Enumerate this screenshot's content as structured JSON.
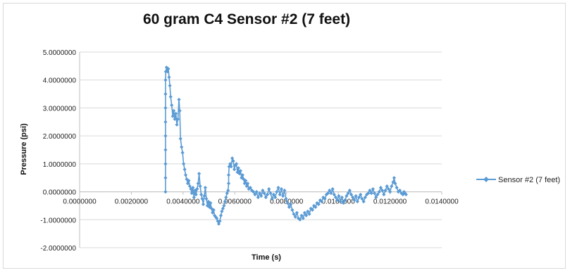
{
  "chart_data": {
    "type": "scatter",
    "title": "60 gram C4 Sensor #2 (7 feet)",
    "xlabel": "Time (s)",
    "ylabel": "Pressure (psi)",
    "xlim": [
      0,
      0.014
    ],
    "ylim": [
      -2,
      5
    ],
    "x_ticks": [
      "0.0000000",
      "0.0020000",
      "0.0040000",
      "0.0060000",
      "0.0080000",
      "0.0100000",
      "0.0120000",
      "0.0140000"
    ],
    "y_ticks": [
      "5.0000000",
      "4.0000000",
      "3.0000000",
      "2.0000000",
      "1.0000000",
      "0.0000000",
      "-1.0000000",
      "-2.0000000"
    ],
    "grid": "horizontal",
    "legend_position": "right",
    "series": [
      {
        "name": "Sensor #2 (7 feet)",
        "color": "#5b9bd5",
        "marker": "diamond",
        "points": [
          [
            0.00332,
            0.0
          ],
          [
            0.00332,
            0.5
          ],
          [
            0.00332,
            1.0
          ],
          [
            0.00332,
            1.5
          ],
          [
            0.00332,
            2.0
          ],
          [
            0.00332,
            2.5
          ],
          [
            0.00332,
            3.0
          ],
          [
            0.00332,
            3.5
          ],
          [
            0.00332,
            4.0
          ],
          [
            0.00333,
            4.3
          ],
          [
            0.00336,
            4.45
          ],
          [
            0.0034,
            4.3
          ],
          [
            0.00343,
            4.4
          ],
          [
            0.00346,
            4.1
          ],
          [
            0.00349,
            3.8
          ],
          [
            0.00352,
            3.4
          ],
          [
            0.00356,
            3.1
          ],
          [
            0.0036,
            2.7
          ],
          [
            0.00364,
            2.9
          ],
          [
            0.00368,
            2.6
          ],
          [
            0.00372,
            2.8
          ],
          [
            0.00376,
            2.4
          ],
          [
            0.0038,
            2.6
          ],
          [
            0.00384,
            3.3
          ],
          [
            0.00387,
            2.9
          ],
          [
            0.0039,
            1.9
          ],
          [
            0.00394,
            1.6
          ],
          [
            0.00398,
            1.4
          ],
          [
            0.00402,
            1.0
          ],
          [
            0.00406,
            0.8
          ],
          [
            0.0041,
            0.6
          ],
          [
            0.00414,
            0.45
          ],
          [
            0.00418,
            0.3
          ],
          [
            0.00422,
            0.4
          ],
          [
            0.00426,
            0.2
          ],
          [
            0.0043,
            0.1
          ],
          [
            0.00434,
            -0.05
          ],
          [
            0.00438,
            0.15
          ],
          [
            0.00442,
            -0.2
          ],
          [
            0.00446,
            0.05
          ],
          [
            0.0045,
            -0.1
          ],
          [
            0.00454,
            0.1
          ],
          [
            0.00458,
            0.3
          ],
          [
            0.00462,
            0.65
          ],
          [
            0.00466,
            0.2
          ],
          [
            0.0047,
            -0.1
          ],
          [
            0.00474,
            -0.25
          ],
          [
            0.00478,
            -0.45
          ],
          [
            0.00482,
            -0.15
          ],
          [
            0.00486,
            0.15
          ],
          [
            0.0049,
            -0.25
          ],
          [
            0.00494,
            -0.5
          ],
          [
            0.00498,
            -0.35
          ],
          [
            0.00502,
            -0.55
          ],
          [
            0.00506,
            -0.4
          ],
          [
            0.0051,
            -0.6
          ],
          [
            0.00514,
            -0.75
          ],
          [
            0.00518,
            -0.65
          ],
          [
            0.00522,
            -0.85
          ],
          [
            0.00526,
            -0.9
          ],
          [
            0.0053,
            -0.95
          ],
          [
            0.00534,
            -1.05
          ],
          [
            0.00538,
            -1.15
          ],
          [
            0.00542,
            -1.05
          ],
          [
            0.00546,
            -0.85
          ],
          [
            0.0055,
            -0.7
          ],
          [
            0.00554,
            -0.6
          ],
          [
            0.00558,
            -0.5
          ],
          [
            0.00562,
            -0.35
          ],
          [
            0.00566,
            -0.2
          ],
          [
            0.0057,
            -0.05
          ],
          [
            0.00574,
            0.05
          ],
          [
            0.00576,
            0.3
          ],
          [
            0.00576,
            0.6
          ],
          [
            0.00578,
            0.9
          ],
          [
            0.00582,
            1.0
          ],
          [
            0.00586,
            0.9
          ],
          [
            0.0059,
            1.2
          ],
          [
            0.00594,
            1.1
          ],
          [
            0.00598,
            0.8
          ],
          [
            0.00602,
            0.95
          ],
          [
            0.00606,
            1.0
          ],
          [
            0.0061,
            0.7
          ],
          [
            0.00614,
            0.85
          ],
          [
            0.00618,
            0.65
          ],
          [
            0.00622,
            0.75
          ],
          [
            0.00626,
            0.5
          ],
          [
            0.0063,
            0.6
          ],
          [
            0.00634,
            0.45
          ],
          [
            0.00638,
            0.3
          ],
          [
            0.00642,
            0.4
          ],
          [
            0.00646,
            0.2
          ],
          [
            0.0065,
            0.3
          ],
          [
            0.00654,
            0.1
          ],
          [
            0.0066,
            0.15
          ],
          [
            0.00666,
            0.05
          ],
          [
            0.00672,
            0.0
          ],
          [
            0.00678,
            -0.1
          ],
          [
            0.00684,
            0.0
          ],
          [
            0.0069,
            -0.2
          ],
          [
            0.00696,
            -0.05
          ],
          [
            0.00702,
            -0.15
          ],
          [
            0.00708,
            0.05
          ],
          [
            0.00714,
            -0.05
          ],
          [
            0.0072,
            -0.2
          ],
          [
            0.00726,
            -0.1
          ],
          [
            0.00732,
            0.1
          ],
          [
            0.00738,
            -0.05
          ],
          [
            0.00744,
            -0.25
          ],
          [
            0.0075,
            -0.1
          ],
          [
            0.00756,
            -0.2
          ],
          [
            0.00762,
            0.0
          ],
          [
            0.00768,
            0.15
          ],
          [
            0.00774,
            -0.1
          ],
          [
            0.0078,
            0.1
          ],
          [
            0.00786,
            -0.15
          ],
          [
            0.00792,
            0.05
          ],
          [
            0.00798,
            -0.25
          ],
          [
            0.00804,
            -0.4
          ],
          [
            0.0081,
            -0.55
          ],
          [
            0.00816,
            -0.45
          ],
          [
            0.00822,
            -0.65
          ],
          [
            0.00828,
            -0.8
          ],
          [
            0.00834,
            -0.9
          ],
          [
            0.0084,
            -0.75
          ],
          [
            0.00846,
            -0.95
          ],
          [
            0.00852,
            -1.0
          ],
          [
            0.00858,
            -0.85
          ],
          [
            0.00864,
            -0.95
          ],
          [
            0.0087,
            -0.75
          ],
          [
            0.00876,
            -0.85
          ],
          [
            0.00882,
            -0.7
          ],
          [
            0.00888,
            -0.8
          ],
          [
            0.00894,
            -0.6
          ],
          [
            0.009,
            -0.65
          ],
          [
            0.00906,
            -0.5
          ],
          [
            0.00912,
            -0.55
          ],
          [
            0.00918,
            -0.4
          ],
          [
            0.00924,
            -0.45
          ],
          [
            0.0093,
            -0.3
          ],
          [
            0.00936,
            -0.35
          ],
          [
            0.00942,
            -0.2
          ],
          [
            0.00948,
            -0.25
          ],
          [
            0.00954,
            -0.1
          ],
          [
            0.0096,
            -0.05
          ],
          [
            0.00966,
            0.05
          ],
          [
            0.00972,
            -0.05
          ],
          [
            0.00978,
            0.1
          ],
          [
            0.00984,
            -0.1
          ],
          [
            0.0099,
            -0.2
          ],
          [
            0.00996,
            -0.3
          ],
          [
            0.01002,
            -0.15
          ],
          [
            0.01008,
            -0.35
          ],
          [
            0.01014,
            -0.2
          ],
          [
            0.0102,
            -0.4
          ],
          [
            0.01026,
            -0.3
          ],
          [
            0.01032,
            -0.15
          ],
          [
            0.01038,
            -0.05
          ],
          [
            0.01044,
            0.05
          ],
          [
            0.0105,
            -0.1
          ],
          [
            0.01056,
            -0.2
          ],
          [
            0.01062,
            -0.3
          ],
          [
            0.01068,
            -0.15
          ],
          [
            0.01074,
            -0.35
          ],
          [
            0.0108,
            -0.2
          ],
          [
            0.01086,
            -0.1
          ],
          [
            0.01092,
            -0.25
          ],
          [
            0.01098,
            -0.35
          ],
          [
            0.01104,
            -0.2
          ],
          [
            0.0111,
            -0.1
          ],
          [
            0.01116,
            -0.05
          ],
          [
            0.01122,
            0.05
          ],
          [
            0.01128,
            -0.05
          ],
          [
            0.01134,
            0.1
          ],
          [
            0.0114,
            -0.05
          ],
          [
            0.01146,
            -0.2
          ],
          [
            0.01152,
            -0.1
          ],
          [
            0.01158,
            0.0
          ],
          [
            0.01164,
            0.15
          ],
          [
            0.0117,
            0.05
          ],
          [
            0.01176,
            -0.1
          ],
          [
            0.01182,
            0.05
          ],
          [
            0.01188,
            0.2
          ],
          [
            0.01194,
            0.1
          ],
          [
            0.012,
            0.0
          ],
          [
            0.01206,
            0.2
          ],
          [
            0.01212,
            0.35
          ],
          [
            0.01216,
            0.5
          ],
          [
            0.0122,
            0.3
          ],
          [
            0.01226,
            0.15
          ],
          [
            0.01232,
            0.0
          ],
          [
            0.01238,
            0.05
          ],
          [
            0.01244,
            -0.05
          ],
          [
            0.0125,
            -0.1
          ],
          [
            0.01254,
            0.0
          ],
          [
            0.01258,
            -0.05
          ],
          [
            0.01262,
            -0.1
          ]
        ]
      }
    ]
  }
}
